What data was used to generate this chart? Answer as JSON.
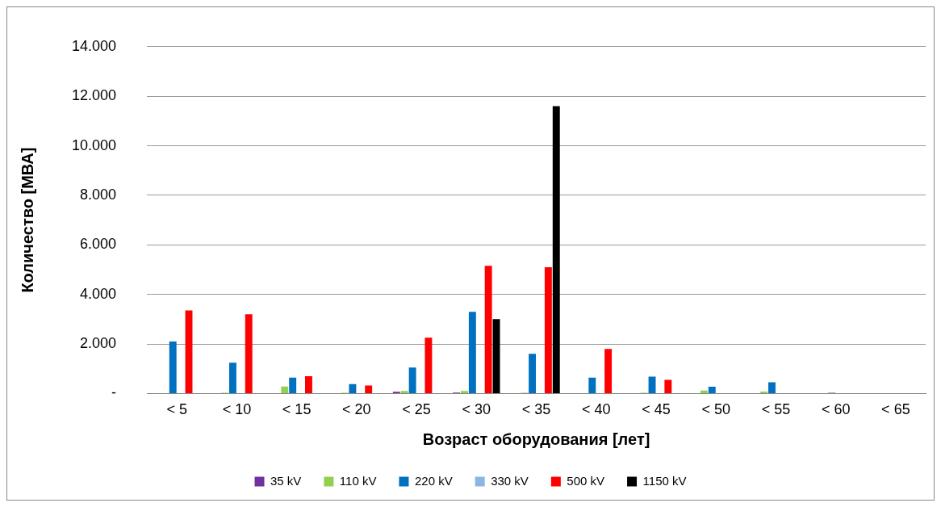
{
  "chart_data": {
    "type": "bar",
    "xlabel": "Возраст оборудования [лет]",
    "ylabel": "Количество [МВА]",
    "categories": [
      "< 5",
      "< 10",
      "< 15",
      "< 20",
      "< 25",
      "< 30",
      "< 35",
      "< 40",
      "< 45",
      "< 50",
      "< 55",
      "< 60",
      "< 65"
    ],
    "series": [
      {
        "name": "35 kV",
        "color": "#7030a0",
        "values": [
          0,
          0,
          0,
          0,
          70,
          40,
          0,
          0,
          0,
          0,
          0,
          0,
          0
        ]
      },
      {
        "name": "110 kV",
        "color": "#92d050",
        "values": [
          0,
          30,
          280,
          30,
          100,
          100,
          30,
          0,
          30,
          120,
          80,
          0,
          0
        ]
      },
      {
        "name": "220 kV",
        "color": "#0070c0",
        "values": [
          2100,
          1240,
          640,
          380,
          1050,
          3300,
          1600,
          640,
          680,
          270,
          450,
          30,
          0
        ]
      },
      {
        "name": "330 kV",
        "color": "#8db4e2",
        "values": [
          0,
          0,
          0,
          0,
          0,
          0,
          0,
          0,
          0,
          0,
          0,
          0,
          0
        ]
      },
      {
        "name": "500 kV",
        "color": "#ff0000",
        "values": [
          3350,
          3200,
          700,
          320,
          2250,
          5150,
          5100,
          1800,
          550,
          0,
          0,
          0,
          0
        ]
      },
      {
        "name": "1150 kV",
        "color": "#000000",
        "values": [
          0,
          0,
          0,
          0,
          0,
          3000,
          11600,
          0,
          0,
          0,
          0,
          0,
          0
        ]
      }
    ],
    "ylim": [
      0,
      14000
    ],
    "yticks": [
      {
        "value": 0,
        "label": "-"
      },
      {
        "value": 2000,
        "label": "2.000"
      },
      {
        "value": 4000,
        "label": "4.000"
      },
      {
        "value": 6000,
        "label": "6.000"
      },
      {
        "value": 8000,
        "label": "8.000"
      },
      {
        "value": 10000,
        "label": "10.000"
      },
      {
        "value": 12000,
        "label": "12.000"
      },
      {
        "value": 14000,
        "label": "14.000"
      }
    ],
    "grid": "y",
    "legend": "bottom"
  }
}
